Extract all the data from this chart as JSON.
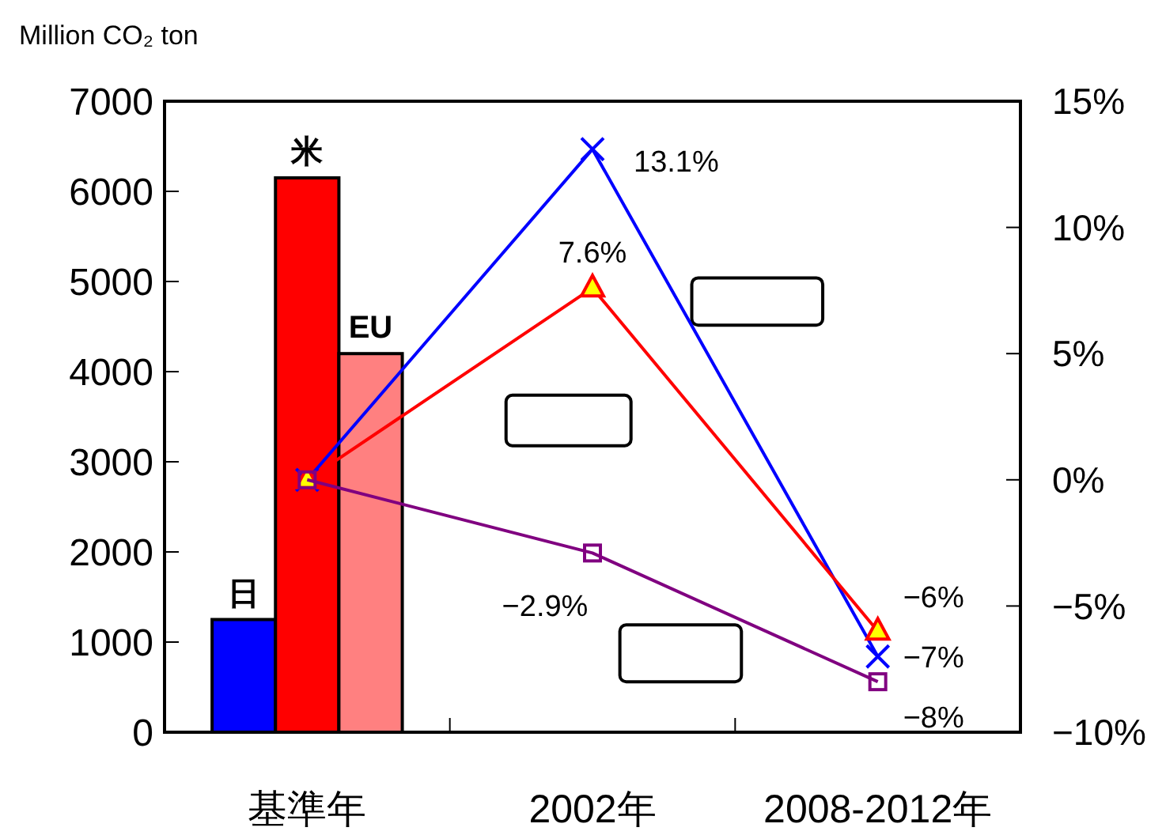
{
  "chart_data": {
    "type": "bar",
    "ylabel": "Million CO₂ ton",
    "categories": [
      "基準年",
      "2002年",
      "2008-2012年"
    ],
    "ylim": [
      0,
      7000
    ],
    "yticks": [
      0,
      1000,
      2000,
      3000,
      4000,
      5000,
      6000,
      7000
    ],
    "y2lim": [
      -10,
      15
    ],
    "y2ticks": [
      {
        "value": -10,
        "label": "−10%"
      },
      {
        "value": -5,
        "label": "−5%"
      },
      {
        "value": 0,
        "label": "0%"
      },
      {
        "value": 5,
        "label": "5%"
      },
      {
        "value": 10,
        "label": "10%"
      },
      {
        "value": 15,
        "label": "15%"
      }
    ],
    "series": [
      {
        "name": "日",
        "color": "#0000ff",
        "values": [
          1250,
          null,
          null
        ]
      },
      {
        "name": "米",
        "color": "#ff0000",
        "values": [
          6150,
          null,
          null
        ]
      },
      {
        "name": "EU",
        "color": "#ff8080",
        "values": [
          4200,
          null,
          null
        ]
      },
      {
        "type": "line",
        "axis": "y2",
        "color": "#0000ff",
        "marker": "cross",
        "values": [
          0,
          13.1,
          -7
        ],
        "value_labels": [
          null,
          "13.1%",
          "−7%"
        ]
      },
      {
        "type": "line",
        "axis": "y2",
        "color": "#ff0000",
        "marker": "triangle",
        "values": [
          0,
          7.6,
          -6
        ],
        "value_labels": [
          null,
          "7.6%",
          "−6%"
        ]
      },
      {
        "type": "line",
        "axis": "y2",
        "color": "#800080",
        "marker": "square",
        "values": [
          0,
          -2.9,
          -8
        ],
        "value_labels": [
          null,
          "−2.9%",
          "−8%"
        ]
      }
    ]
  }
}
